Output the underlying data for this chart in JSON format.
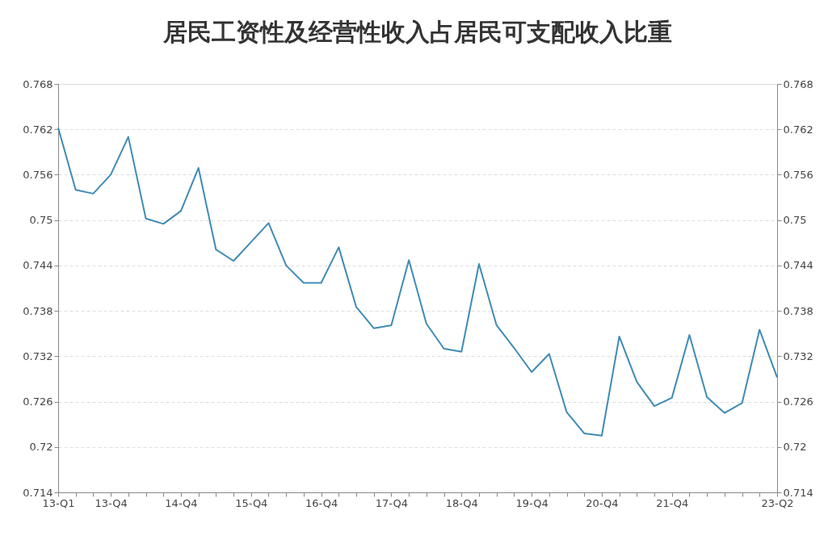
{
  "chart_data": {
    "type": "line",
    "title": "居民工资性及经营性收入占居民可支配收入比重",
    "categories": [
      "13-Q1",
      null,
      null,
      "13-Q4",
      null,
      null,
      null,
      "14-Q4",
      null,
      null,
      null,
      "15-Q4",
      null,
      null,
      null,
      "16-Q4",
      null,
      null,
      null,
      "17-Q4",
      null,
      null,
      null,
      "18-Q4",
      null,
      null,
      null,
      "19-Q4",
      null,
      null,
      null,
      "20-Q4",
      null,
      null,
      null,
      "21-Q4",
      null,
      null,
      null,
      null,
      null,
      "23-Q2"
    ],
    "series": [
      {
        "color": "#3f8bb5",
        "values": [
          0.7622,
          0.754,
          0.7535,
          0.756,
          0.761,
          0.7502,
          0.7495,
          0.7512,
          0.7569,
          0.7461,
          0.7446,
          0.7471,
          0.7496,
          0.744,
          0.7417,
          0.7417,
          0.7464,
          0.7385,
          0.7357,
          0.7361,
          0.7447,
          0.7363,
          0.733,
          0.7326,
          0.7442,
          0.7361,
          0.7331,
          0.7299,
          0.7323,
          0.7246,
          0.7218,
          0.7215,
          0.7346,
          0.7286,
          0.7254,
          0.7265,
          0.7348,
          0.7266,
          0.7245,
          0.7258,
          0.7355,
          0.7292
        ]
      }
    ],
    "ylim": [
      0.714,
      0.768
    ],
    "yticks": [
      0.714,
      0.72,
      0.726,
      0.732,
      0.738,
      0.744,
      0.75,
      0.756,
      0.762,
      0.768
    ],
    "y2lim": [
      0.714,
      0.768
    ],
    "y2ticks": [
      0.714,
      0.72,
      0.726,
      0.732,
      0.738,
      0.744,
      0.75,
      0.756,
      0.762,
      0.768
    ],
    "grid": "y",
    "marker": "none",
    "line_style": "solid"
  }
}
